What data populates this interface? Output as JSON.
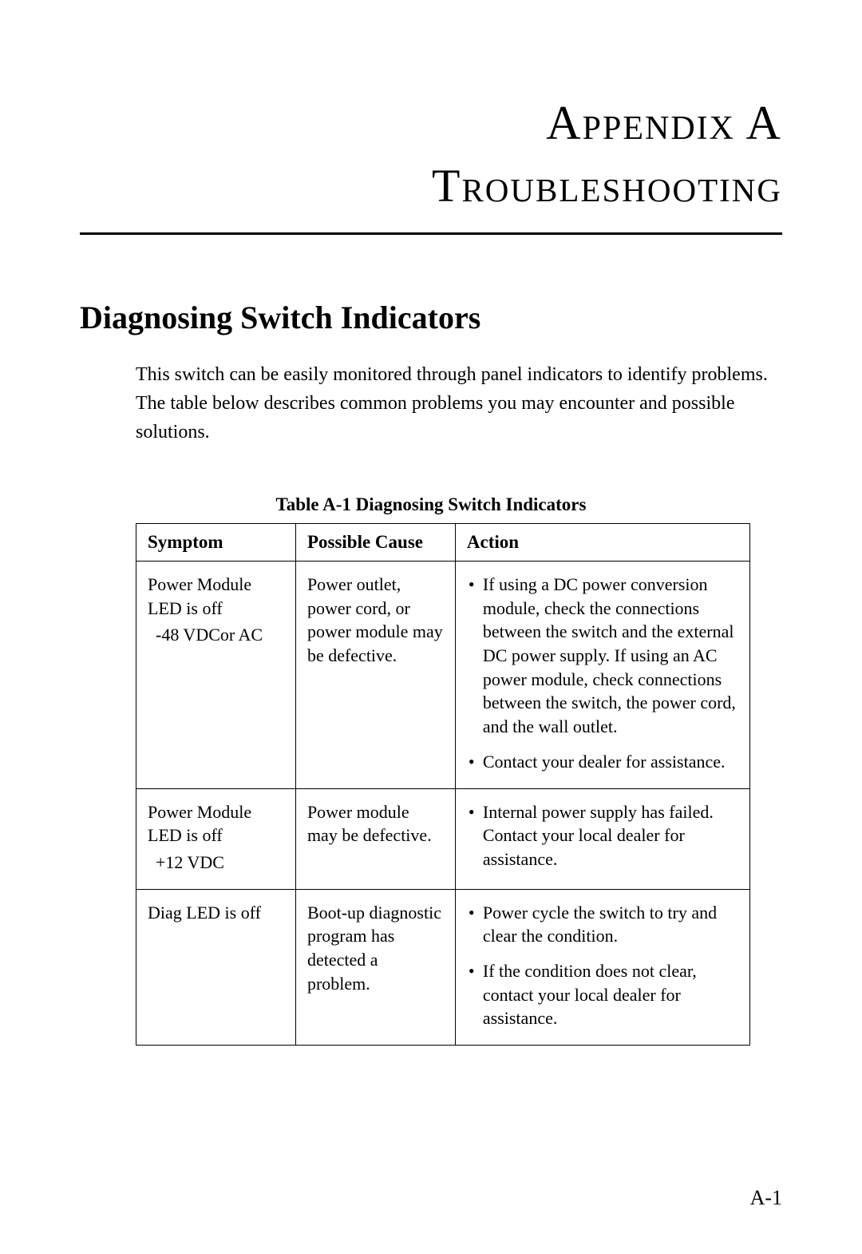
{
  "header": {
    "appendix_label": "Appendix A",
    "chapter_title": "Troubleshooting"
  },
  "section": {
    "title": "Diagnosing Switch Indicators",
    "text": "This switch can be easily monitored through panel indicators to identify problems. The table below describes common problems you may encounter and possible solutions."
  },
  "table": {
    "caption": "Table A-1  Diagnosing Switch Indicators",
    "columns": [
      "Symptom",
      "Possible Cause",
      "Action"
    ],
    "column_widths_pct": [
      26,
      26,
      48
    ],
    "rows": [
      {
        "symptom_main": "Power Module LED is off",
        "symptom_sub": "-48 VDCor AC",
        "cause": "Power outlet, power cord, or power module may be defective.",
        "actions": [
          "If using a DC power conversion module, check the connections between the switch and the external DC power supply. If using an AC power module, check connections between the switch, the power cord, and the wall outlet.",
          "Contact your dealer for assistance."
        ]
      },
      {
        "symptom_main": "Power Module LED is off",
        "symptom_sub": "+12 VDC",
        "cause": "Power module may be defective.",
        "actions": [
          "Internal power supply has failed. Contact your local dealer for assistance."
        ]
      },
      {
        "symptom_main": "Diag LED is off",
        "symptom_sub": "",
        "cause": "Boot-up diagnostic program has detected a problem.",
        "actions": [
          "Power cycle the switch to try and clear the condition.",
          "If the condition does not clear, contact your local dealer for assistance."
        ]
      }
    ]
  },
  "footer": {
    "page_number": "A-1"
  },
  "styling": {
    "page_bg": "#ffffff",
    "text_color": "#000000",
    "divider_color": "#000000",
    "table_border_color": "#000000",
    "title_fontsize_pt": 60,
    "section_title_fontsize_pt": 40,
    "body_fontsize_pt": 24,
    "table_fontsize_pt": 22,
    "caption_fontsize_pt": 23,
    "page_number_fontsize_pt": 26,
    "font_family": "Garamond serif"
  }
}
